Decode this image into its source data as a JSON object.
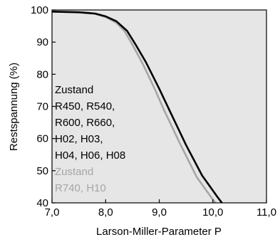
{
  "chart_data": {
    "type": "line",
    "xlabel": "Larson-Miller-Parameter  P",
    "ylabel": "Restspannung (%)",
    "xlim": [
      7.0,
      11.0
    ],
    "ylim": [
      40,
      100
    ],
    "x_ticks": [
      {
        "value": 7.0,
        "label": "7,0"
      },
      {
        "value": 8.0,
        "label": "8,0"
      },
      {
        "value": 9.0,
        "label": "9,0"
      },
      {
        "value": 10.0,
        "label": "10,0"
      },
      {
        "value": 11.0,
        "label": "11,0"
      }
    ],
    "y_ticks": [
      {
        "value": 40,
        "label": "40"
      },
      {
        "value": 50,
        "label": "50"
      },
      {
        "value": 60,
        "label": "60"
      },
      {
        "value": 70,
        "label": "70"
      },
      {
        "value": 80,
        "label": "80"
      },
      {
        "value": 90,
        "label": "90"
      },
      {
        "value": 100,
        "label": "100"
      }
    ],
    "grid": false,
    "plot_background": "#e6e6e6",
    "series": [
      {
        "color": "#a6a6a6",
        "x": [
          7.0,
          7.5,
          7.8,
          8.0,
          8.2,
          8.35,
          8.5,
          8.7,
          8.9,
          9.1,
          9.4,
          9.7,
          10.0,
          10.05
        ],
        "y": [
          99.5,
          99.2,
          98.8,
          97.8,
          96.0,
          93.5,
          89.2,
          83.0,
          76.0,
          68.5,
          58.0,
          48.0,
          41.0,
          40.0
        ]
      },
      {
        "color": "#000000",
        "x": [
          7.0,
          7.5,
          7.8,
          8.0,
          8.2,
          8.4,
          8.55,
          8.75,
          9.0,
          9.2,
          9.5,
          9.8,
          10.1,
          10.17
        ],
        "y": [
          99.5,
          99.3,
          98.9,
          98.0,
          96.5,
          93.5,
          89.5,
          83.8,
          75.5,
          68.5,
          58.0,
          48.5,
          41.5,
          40.0
        ]
      }
    ],
    "annotations": [
      {
        "color": "#000000",
        "lines": [
          "Zustand",
          "R450, R540,",
          "R600, R660,",
          "H02, H03,",
          "H04, H06, H08"
        ]
      },
      {
        "color": "#a6a6a6",
        "lines": [
          "Zustand",
          "R740, H10"
        ]
      }
    ]
  }
}
